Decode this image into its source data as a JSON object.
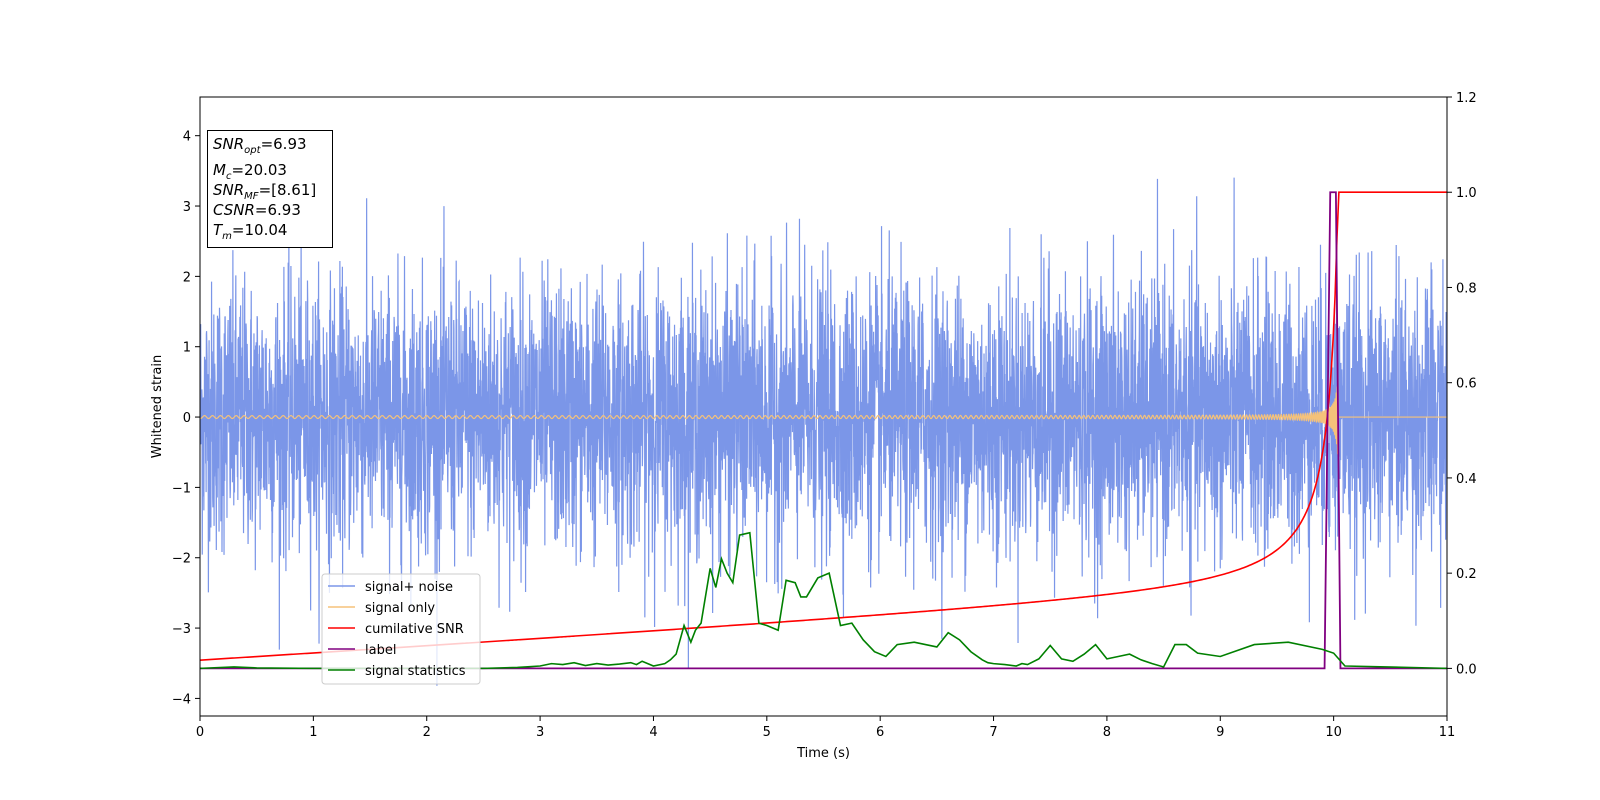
{
  "chart_data": {
    "type": "line",
    "xlabel": "Time (s)",
    "ylabel": "Whitened strain",
    "xlim": [
      0,
      11
    ],
    "ylim_left": [
      -4.25,
      4.55
    ],
    "ylim_right": [
      -0.1,
      1.2
    ],
    "xticks": [
      "0",
      "1",
      "2",
      "3",
      "4",
      "5",
      "6",
      "7",
      "8",
      "9",
      "10",
      "11"
    ],
    "yticks_left": [
      "−4",
      "−3",
      "−2",
      "−1",
      "0",
      "1",
      "2",
      "3",
      "4"
    ],
    "yticks_right": [
      "0.0",
      "0.2",
      "0.4",
      "0.6",
      "0.8",
      "1.0",
      "1.2"
    ],
    "grid": false,
    "legend_position": "lower-left",
    "annotations": {
      "snr_opt": {
        "label": "SNR",
        "sub": "opt",
        "value": "=6.93"
      },
      "mc": {
        "label": "M",
        "sub": "c",
        "value": "=20.03"
      },
      "snr_mf": {
        "label": "SNR",
        "sub": "MF",
        "value": "=[8.61]"
      },
      "csnr": {
        "label": "CSNR",
        "value": "=6.93"
      },
      "tm": {
        "label": "T",
        "sub": "m",
        "value": "=10.04"
      }
    },
    "series": [
      {
        "name": "signal+ noise",
        "color": "#7b96e8",
        "axis": "left",
        "description_stats": {
          "std": 1.0,
          "max": 4.17,
          "min": -3.85
        }
      },
      {
        "name": "signal only",
        "color": "#f5c27a",
        "axis": "left",
        "merger_time": 10.04,
        "peak_amplitude": 1.55
      },
      {
        "name": "cumilative SNR",
        "color": "#ff0000",
        "axis": "right",
        "x": [
          0,
          1,
          2,
          3,
          4,
          5,
          6,
          7,
          8,
          9,
          9.5,
          9.8,
          9.95,
          10.0,
          10.05,
          10.08,
          11
        ],
        "y": [
          0.02,
          0.04,
          0.06,
          0.08,
          0.1,
          0.12,
          0.14,
          0.16,
          0.19,
          0.24,
          0.29,
          0.35,
          0.45,
          0.62,
          0.93,
          1.0,
          1.0
        ]
      },
      {
        "name": "label",
        "color": "#800080",
        "axis": "right",
        "x": [
          0,
          9.92,
          9.97,
          10.02,
          10.06,
          11
        ],
        "y": [
          0,
          0,
          1.0,
          1.0,
          0,
          0
        ]
      },
      {
        "name": "signal statistics",
        "color": "#008000",
        "axis": "right",
        "x": [
          0,
          0.3,
          0.5,
          1,
          1.5,
          2,
          2.5,
          2.8,
          3,
          3.1,
          3.2,
          3.3,
          3.4,
          3.5,
          3.6,
          3.7,
          3.8,
          3.85,
          3.9,
          4.0,
          4.1,
          4.15,
          4.2,
          4.27,
          4.33,
          4.37,
          4.42,
          4.5,
          4.55,
          4.6,
          4.65,
          4.7,
          4.76,
          4.85,
          4.93,
          5.0,
          5.1,
          5.17,
          5.25,
          5.3,
          5.35,
          5.45,
          5.55,
          5.65,
          5.75,
          5.85,
          5.95,
          6.05,
          6.15,
          6.3,
          6.5,
          6.6,
          6.7,
          6.8,
          6.9,
          6.95,
          7.0,
          7.1,
          7.2,
          7.25,
          7.3,
          7.4,
          7.5,
          7.6,
          7.7,
          7.8,
          7.9,
          8.0,
          8.1,
          8.2,
          8.3,
          8.4,
          8.5,
          8.6,
          8.7,
          8.8,
          9.0,
          9.3,
          9.6,
          9.9,
          10.0,
          10.1,
          11
        ],
        "y": [
          0.0,
          0.003,
          0.001,
          0.0,
          0.0,
          0.0,
          0.0,
          0.002,
          0.005,
          0.01,
          0.008,
          0.012,
          0.006,
          0.01,
          0.007,
          0.009,
          0.012,
          0.008,
          0.015,
          0.005,
          0.01,
          0.018,
          0.03,
          0.09,
          0.055,
          0.08,
          0.095,
          0.21,
          0.17,
          0.23,
          0.2,
          0.18,
          0.28,
          0.285,
          0.095,
          0.09,
          0.08,
          0.185,
          0.18,
          0.15,
          0.15,
          0.19,
          0.2,
          0.09,
          0.095,
          0.06,
          0.035,
          0.025,
          0.05,
          0.055,
          0.045,
          0.075,
          0.06,
          0.035,
          0.018,
          0.012,
          0.01,
          0.008,
          0.005,
          0.01,
          0.008,
          0.02,
          0.048,
          0.02,
          0.015,
          0.03,
          0.05,
          0.02,
          0.025,
          0.03,
          0.018,
          0.01,
          0.003,
          0.05,
          0.05,
          0.032,
          0.025,
          0.05,
          0.055,
          0.04,
          0.032,
          0.005,
          0.0
        ]
      }
    ]
  }
}
